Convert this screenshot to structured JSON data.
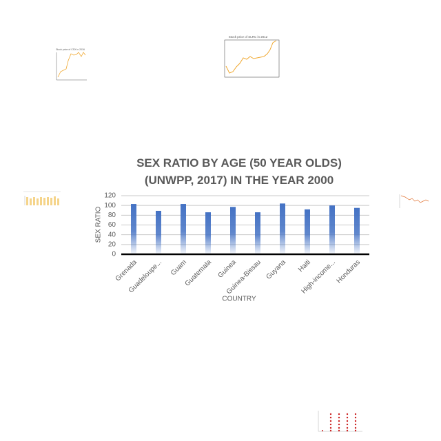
{
  "chart_data": {
    "type": "bar",
    "title": "SEX RATIO BY AGE (50 YEAR OLDS) (UNWPP, 2017) IN THE YEAR 2000",
    "x_label": "COUNTRY",
    "y_label": "SEX RATIO",
    "categories": [
      "Grenada",
      "Guadeloupe...",
      "Guam",
      "Guatemala",
      "Guinea",
      "Guinea-Bissau",
      "Guyana",
      "Haiti",
      "High-income...",
      "Honduras"
    ],
    "values": [
      103,
      89,
      103,
      86,
      97,
      86,
      104,
      92,
      100,
      95
    ],
    "color": "#4472c4",
    "ylim": [
      0,
      120
    ],
    "yticks": [
      0,
      20,
      40,
      60,
      80,
      100,
      120
    ],
    "grid": true
  },
  "thumbnails": {
    "slrc_title": "Stock price of SLRC in 2012",
    "csx_title": "Stock price of CSX in 2016"
  }
}
